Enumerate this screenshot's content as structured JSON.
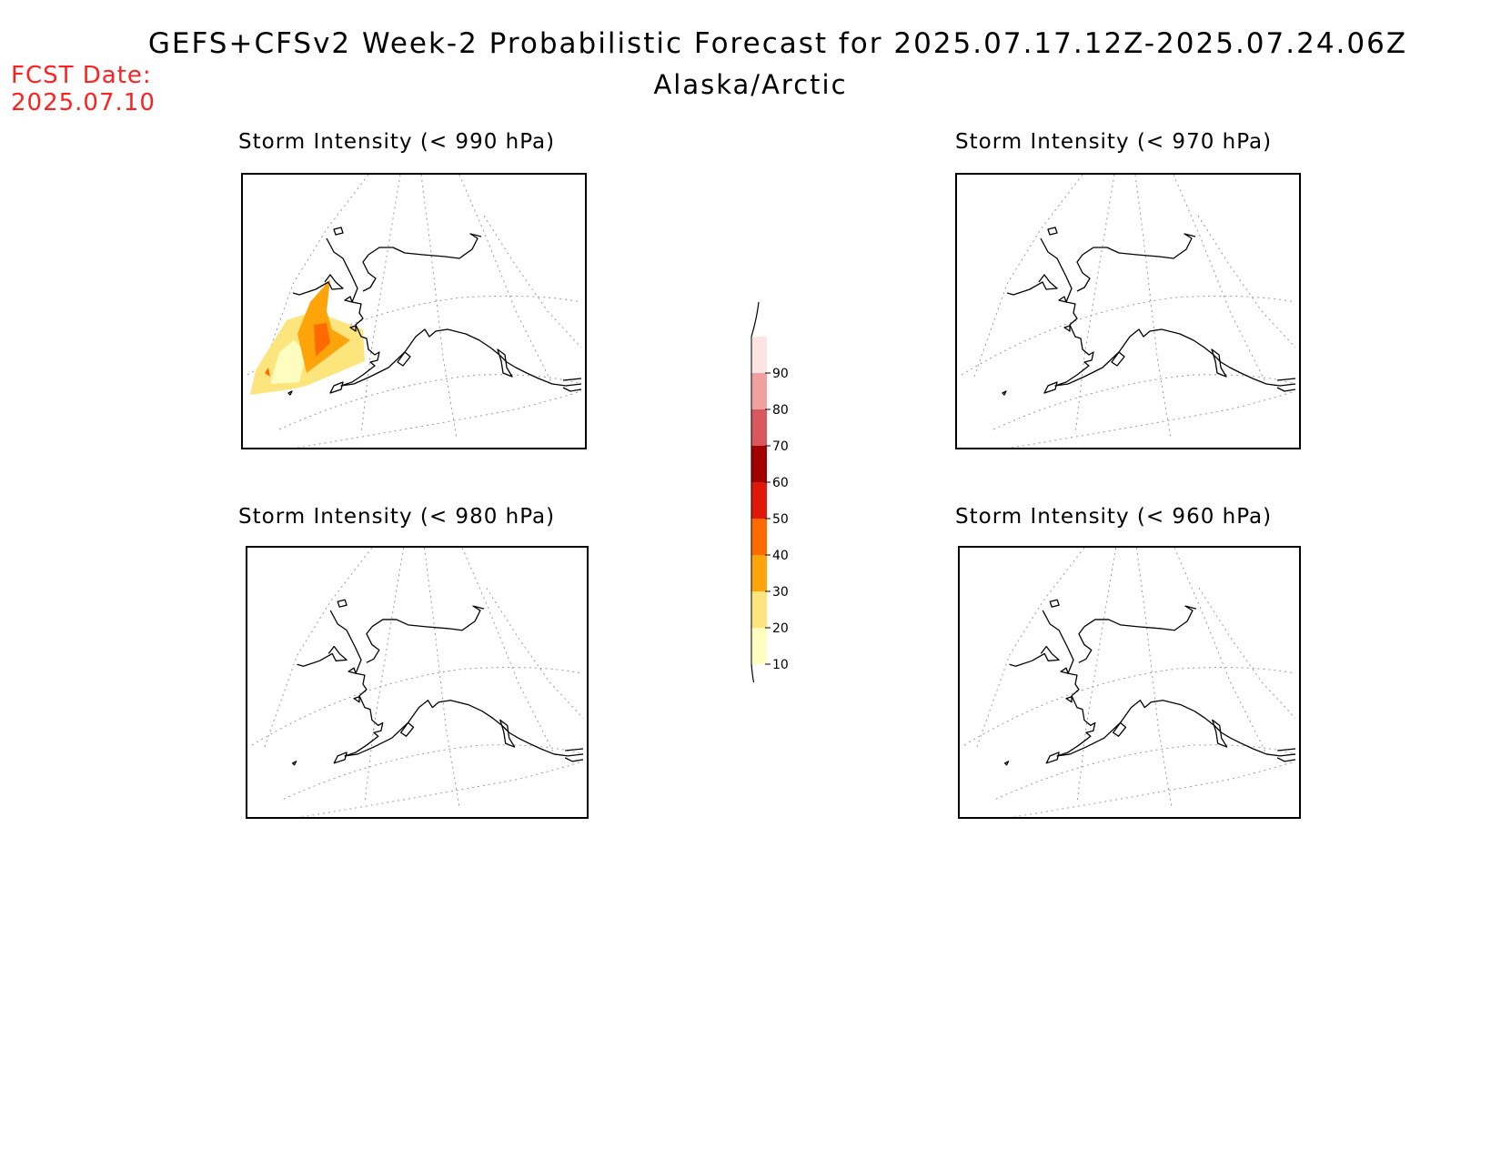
{
  "header": {
    "title": "GEFS+CFSv2 Week-2 Probabilistic Forecast for 2025.07.17.12Z-2025.07.24.06Z",
    "subtitle": "Alaska/Arctic",
    "fcst_label": "FCST Date:",
    "fcst_date": "2025.07.10"
  },
  "panels": [
    {
      "id": "p990",
      "title": "Storm Intensity (< 990 hPa)",
      "has_probability": true
    },
    {
      "id": "p970",
      "title": "Storm Intensity (< 970 hPa)",
      "has_probability": false
    },
    {
      "id": "p980",
      "title": "Storm Intensity (< 980 hPa)",
      "has_probability": false
    },
    {
      "id": "p960",
      "title": "Storm Intensity (< 960 hPa)",
      "has_probability": false
    }
  ],
  "colorbar": {
    "levels": [
      "10",
      "20",
      "30",
      "40",
      "50",
      "60",
      "70",
      "80",
      "90"
    ],
    "colors": [
      "#fffcc0",
      "#fde57e",
      "#fca40a",
      "#fe6a00",
      "#e0180a",
      "#a20000",
      "#d9585d",
      "#f0a0a1",
      "#fde4e4"
    ]
  },
  "colors": {
    "fcst_text": "#ff2020",
    "coast": "#000000",
    "grid": "#999999"
  }
}
